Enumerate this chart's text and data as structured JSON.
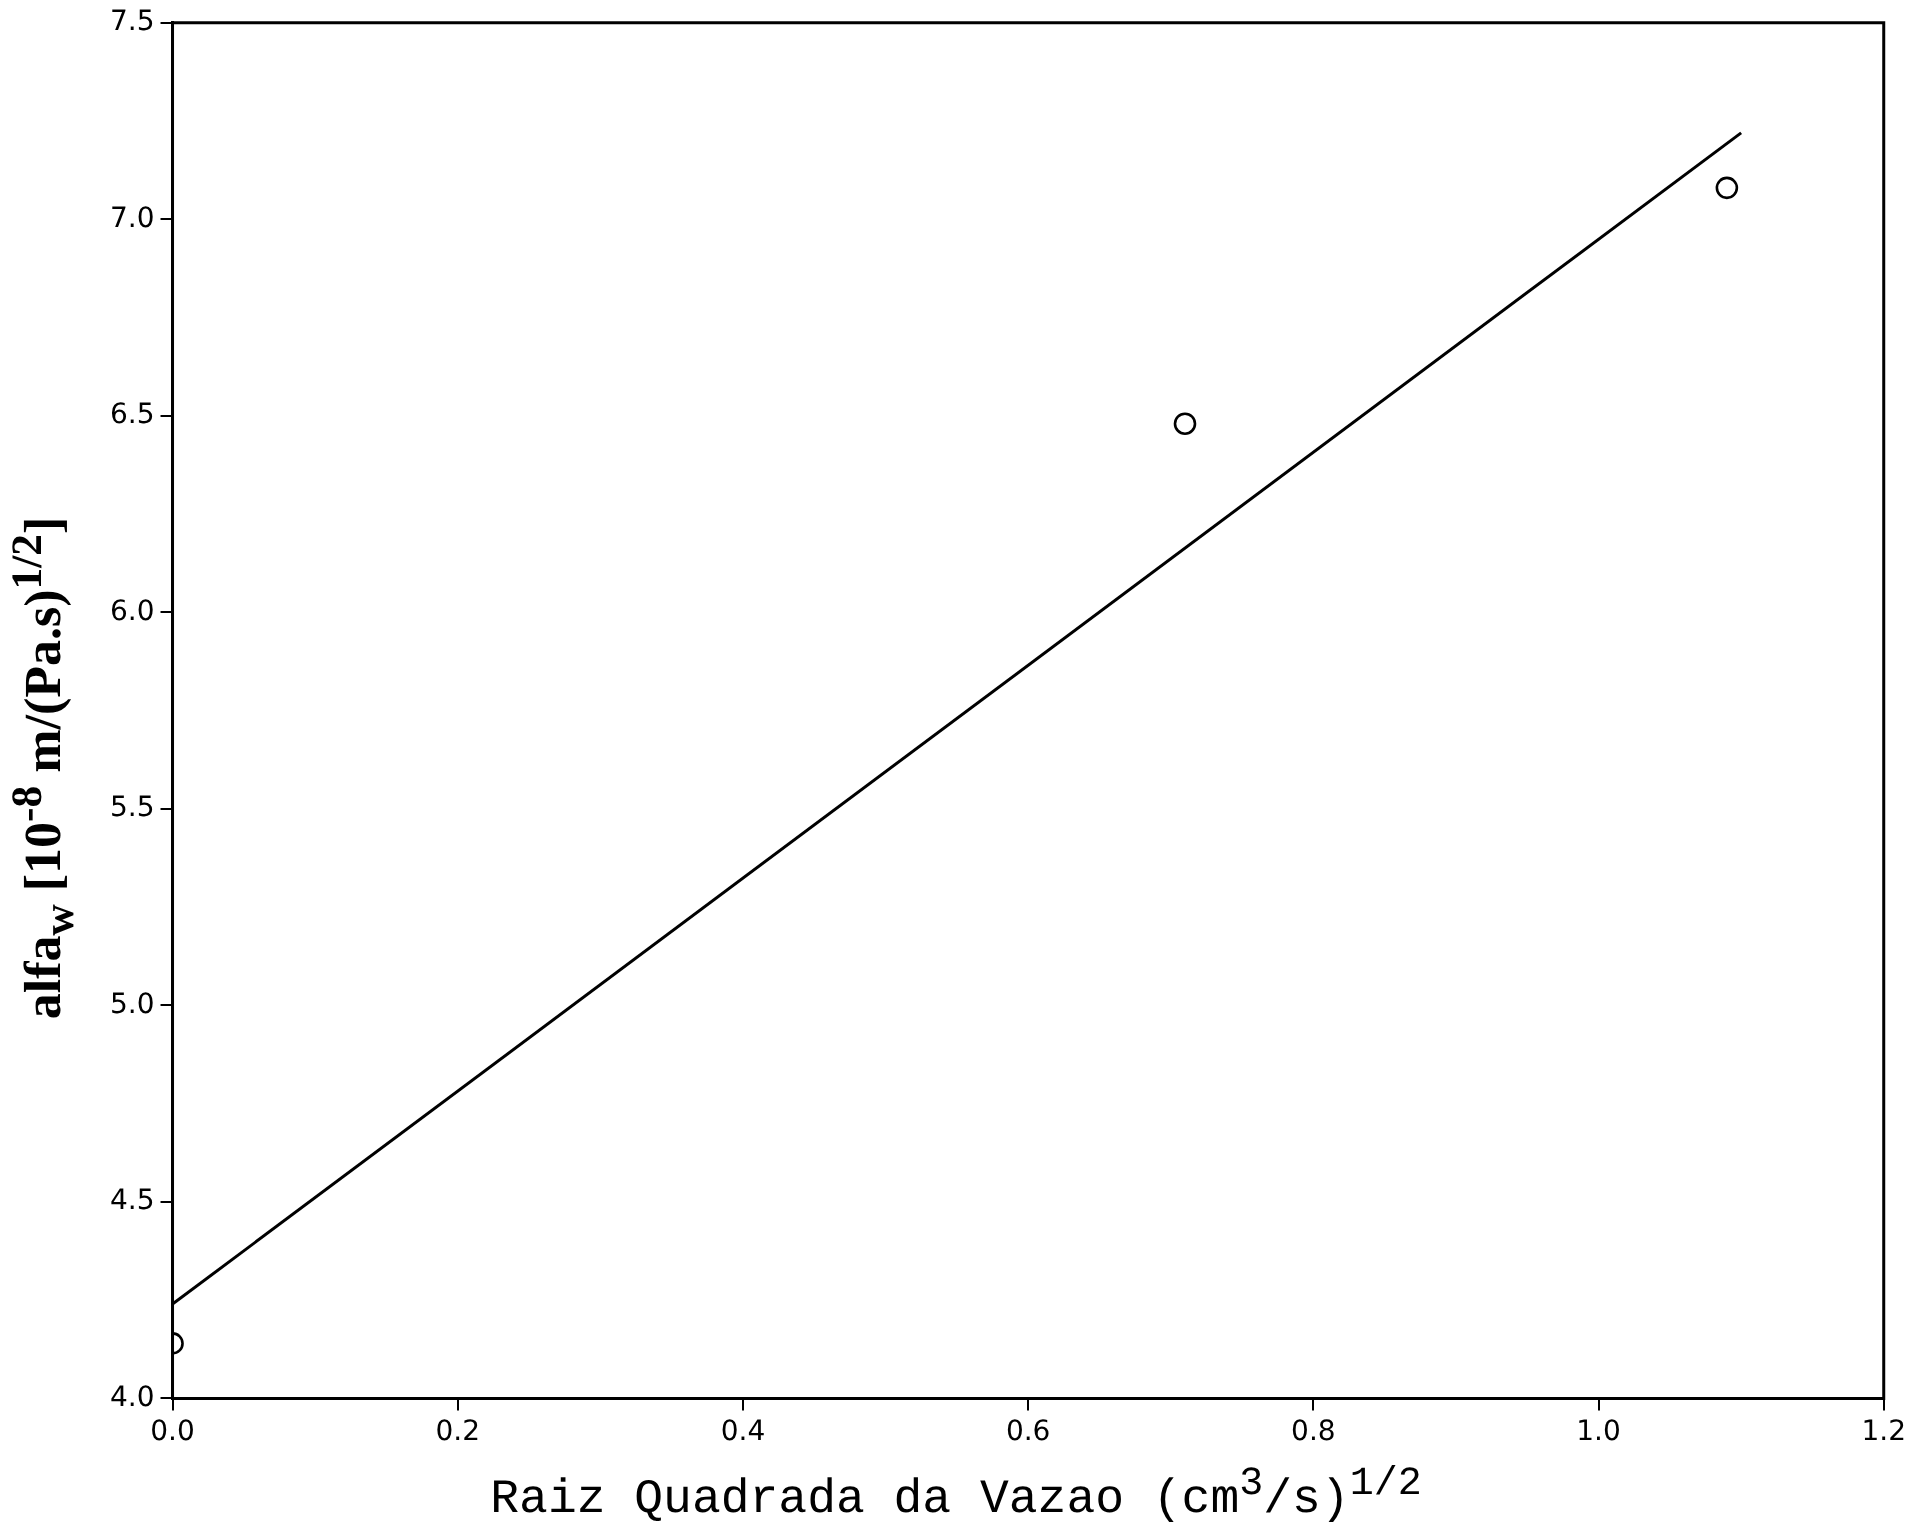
{
  "chart_data": {
    "type": "scatter",
    "xlabel": "Raiz Quadrada da Vazao (cm$^{3}$/s)$^{1/2}$",
    "ylabel": "alfa$_{w}$ [10$^{-8}$ m/(Pa.s)$^{1/2}$]",
    "xlim": [
      0,
      1.2
    ],
    "xticks": [
      {
        "value": 0,
        "label": "0.0"
      },
      0.2,
      0.4,
      0.6,
      0.8,
      {
        "value": 1,
        "label": "1.0"
      },
      1.2
    ],
    "ylim": [
      4,
      7.5
    ],
    "yticks": [
      {
        "value": 4,
        "label": "4.0"
      },
      4.5,
      {
        "value": 5,
        "label": "5.0"
      },
      5.5,
      {
        "value": 6,
        "label": "6.0"
      },
      6.5,
      {
        "value": 7,
        "label": "7.0"
      },
      7.5
    ],
    "grid": false,
    "legend": false,
    "series": [
      {
        "type": "scatter",
        "color": "#000000",
        "marker": "circle",
        "x": [
          0,
          0.71,
          1.09
        ],
        "values": [
          4.14,
          6.48,
          7.08
        ]
      },
      {
        "type": "line",
        "color": "#000000",
        "marker": "none",
        "line_style": "solid",
        "x": [
          0,
          1.1
        ],
        "values": [
          4.24,
          7.22
        ]
      }
    ]
  }
}
